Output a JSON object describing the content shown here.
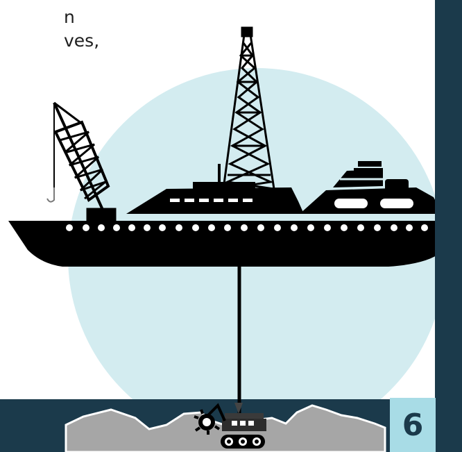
{
  "text_fragment": {
    "line1": "n",
    "line2": "ves,"
  },
  "page_number": "6",
  "colors": {
    "circle": "#d3ecf0",
    "dark_navy": "#1b3a4b",
    "light_blue": "#a8dce6",
    "seafloor": "#a6a6a6",
    "ship": "#000000"
  },
  "icons": {
    "ship": "drill-ship-icon",
    "derrick": "drilling-derrick-icon",
    "crane": "crane-icon",
    "robot": "seafloor-mining-robot-icon"
  }
}
